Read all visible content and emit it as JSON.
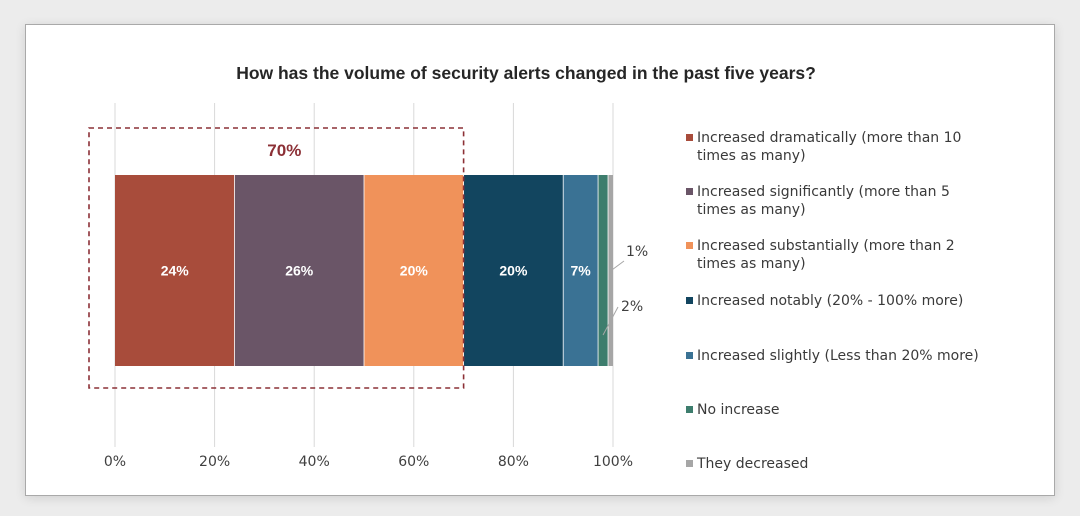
{
  "chart_data": {
    "type": "bar",
    "orientation": "horizontal",
    "stacked": true,
    "title": "How has the volume of security alerts changed in the past five years?",
    "xlim": [
      0,
      100
    ],
    "xticks": [
      "0%",
      "20%",
      "40%",
      "60%",
      "80%",
      "100%"
    ],
    "series": [
      {
        "name": "Increased dramatically (more than 10 times as many)",
        "value": 24,
        "label": "24%",
        "color": "#a84c3b"
      },
      {
        "name": "Increased significantly (more than 5 times as many)",
        "value": 26,
        "label": "26%",
        "color": "#6a5567"
      },
      {
        "name": "Increased substantially (more than 2 times as many)",
        "value": 20,
        "label": "20%",
        "color": "#f0925a"
      },
      {
        "name": "Increased notably (20% - 100% more)",
        "value": 20,
        "label": "20%",
        "color": "#12455f"
      },
      {
        "name": "Increased slightly (Less than 20% more)",
        "value": 7,
        "label": "7%",
        "color": "#3a7294"
      },
      {
        "name": "No increase",
        "value": 2,
        "label": "2%",
        "color": "#3d7d6d"
      },
      {
        "name": "They decreased",
        "value": 1,
        "label": "1%",
        "color": "#a6a6a6"
      }
    ],
    "highlight": {
      "label": "70%",
      "from": 0,
      "to": 70,
      "color": "#8c3036"
    }
  }
}
